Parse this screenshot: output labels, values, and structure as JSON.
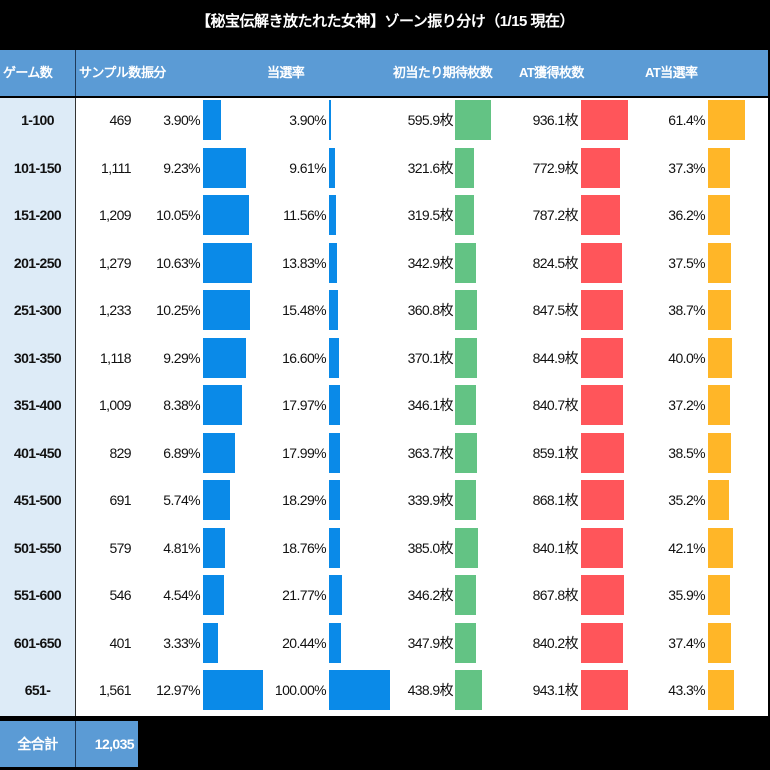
{
  "title": "【秘宝伝解き放たれた女神】ゾーン振り分け（1/15 現在）",
  "header": {
    "game_count": "ゲーム数",
    "samples": "サンプル数",
    "distribution": "振分",
    "hit_rate": "当選率",
    "expected_coins": "初当たり期待枚数",
    "at_coins": "AT獲得枚数",
    "at_rate": "AT当選率"
  },
  "rows": [
    {
      "zone": "1-100",
      "samples": "469",
      "dist": "3.90%",
      "hit": "3.90%",
      "coins": "595.9枚",
      "at": "936.1枚",
      "atrate": "61.4%"
    },
    {
      "zone": "101-150",
      "samples": "1,111",
      "dist": "9.23%",
      "hit": "9.61%",
      "coins": "321.6枚",
      "at": "772.9枚",
      "atrate": "37.3%"
    },
    {
      "zone": "151-200",
      "samples": "1,209",
      "dist": "10.05%",
      "hit": "11.56%",
      "coins": "319.5枚",
      "at": "787.2枚",
      "atrate": "36.2%"
    },
    {
      "zone": "201-250",
      "samples": "1,279",
      "dist": "10.63%",
      "hit": "13.83%",
      "coins": "342.9枚",
      "at": "824.5枚",
      "atrate": "37.5%"
    },
    {
      "zone": "251-300",
      "samples": "1,233",
      "dist": "10.25%",
      "hit": "15.48%",
      "coins": "360.8枚",
      "at": "847.5枚",
      "atrate": "38.7%"
    },
    {
      "zone": "301-350",
      "samples": "1,118",
      "dist": "9.29%",
      "hit": "16.60%",
      "coins": "370.1枚",
      "at": "844.9枚",
      "atrate": "40.0%"
    },
    {
      "zone": "351-400",
      "samples": "1,009",
      "dist": "8.38%",
      "hit": "17.97%",
      "coins": "346.1枚",
      "at": "840.7枚",
      "atrate": "37.2%"
    },
    {
      "zone": "401-450",
      "samples": "829",
      "dist": "6.89%",
      "hit": "17.99%",
      "coins": "363.7枚",
      "at": "859.1枚",
      "atrate": "38.5%"
    },
    {
      "zone": "451-500",
      "samples": "691",
      "dist": "5.74%",
      "hit": "18.29%",
      "coins": "339.9枚",
      "at": "868.1枚",
      "atrate": "35.2%"
    },
    {
      "zone": "501-550",
      "samples": "579",
      "dist": "4.81%",
      "hit": "18.76%",
      "coins": "385.0枚",
      "at": "840.1枚",
      "atrate": "42.1%"
    },
    {
      "zone": "551-600",
      "samples": "546",
      "dist": "4.54%",
      "hit": "21.77%",
      "coins": "346.2枚",
      "at": "867.8枚",
      "atrate": "35.9%"
    },
    {
      "zone": "601-650",
      "samples": "401",
      "dist": "3.33%",
      "hit": "20.44%",
      "coins": "347.9枚",
      "at": "840.2枚",
      "atrate": "37.4%"
    },
    {
      "zone": "651-",
      "samples": "1,561",
      "dist": "12.97%",
      "hit": "100.00%",
      "coins": "438.9枚",
      "at": "943.1枚",
      "atrate": "43.3%"
    }
  ],
  "total": {
    "label": "全合計",
    "samples": "12,035"
  },
  "colors": {
    "header_bg": "#5b9bd5",
    "zone_bg": "#ddebf7",
    "bar_blue": "#0a8ae8",
    "bar_green": "#63c384",
    "bar_red": "#ff555a",
    "bar_orange": "#ffb628"
  },
  "chart_data": {
    "type": "table",
    "title": "【秘宝伝解き放たれた女神】ゾーン振り分け（1/15 現在）",
    "categories": [
      "1-100",
      "101-150",
      "151-200",
      "201-250",
      "251-300",
      "301-350",
      "351-400",
      "401-450",
      "451-500",
      "501-550",
      "551-600",
      "601-650",
      "651-"
    ],
    "columns": [
      "ゲーム数",
      "サンプル数",
      "振分",
      "当選率",
      "初当たり期待枚数",
      "AT獲得枚数",
      "AT当選率"
    ],
    "series": [
      {
        "name": "サンプル数",
        "values": [
          469,
          1111,
          1209,
          1279,
          1233,
          1118,
          1009,
          829,
          691,
          579,
          546,
          401,
          1561
        ]
      },
      {
        "name": "振分",
        "unit": "%",
        "values": [
          3.9,
          9.23,
          10.05,
          10.63,
          10.25,
          9.29,
          8.38,
          6.89,
          5.74,
          4.81,
          4.54,
          3.33,
          12.97
        ]
      },
      {
        "name": "当選率",
        "unit": "%",
        "values": [
          3.9,
          9.61,
          11.56,
          13.83,
          15.48,
          16.6,
          17.97,
          17.99,
          18.29,
          18.76,
          21.77,
          20.44,
          100.0
        ]
      },
      {
        "name": "初当たり期待枚数",
        "unit": "枚",
        "values": [
          595.9,
          321.6,
          319.5,
          342.9,
          360.8,
          370.1,
          346.1,
          363.7,
          339.9,
          385.0,
          346.2,
          347.9,
          438.9
        ]
      },
      {
        "name": "AT獲得枚数",
        "unit": "枚",
        "values": [
          936.1,
          772.9,
          787.2,
          824.5,
          847.5,
          844.9,
          840.7,
          859.1,
          868.1,
          840.1,
          867.8,
          840.2,
          943.1
        ]
      },
      {
        "name": "AT当選率",
        "unit": "%",
        "values": [
          61.4,
          37.3,
          36.2,
          37.5,
          38.7,
          40.0,
          37.2,
          38.5,
          35.2,
          42.1,
          35.9,
          37.4,
          43.3
        ]
      }
    ],
    "total_samples": 12035,
    "data_bars": true
  }
}
